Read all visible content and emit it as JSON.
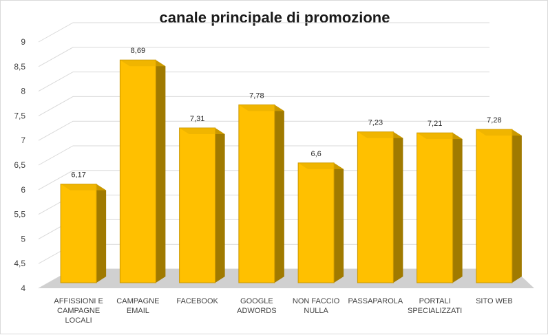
{
  "chart_data": {
    "type": "bar",
    "title": "canale principale di promozione",
    "categories": [
      [
        "AFFISSIONI E",
        "CAMPAGNE",
        "LOCALI"
      ],
      [
        "CAMPAGNE",
        "EMAIL"
      ],
      [
        "FACEBOOK"
      ],
      [
        "GOOGLE",
        "ADWORDS"
      ],
      [
        "NON FACCIO",
        "NULLA"
      ],
      [
        "PASSAPAROLA"
      ],
      [
        "PORTALI",
        "SPECIALIZZATI"
      ],
      [
        "SITO WEB"
      ]
    ],
    "values": [
      6.17,
      8.69,
      7.31,
      7.78,
      6.6,
      7.23,
      7.21,
      7.28
    ],
    "value_labels": [
      "6,17",
      "8,69",
      "7,31",
      "7,78",
      "6,6",
      "7,23",
      "7,21",
      "7,28"
    ],
    "yticks": [
      "4",
      "4,5",
      "5",
      "5,5",
      "6",
      "6,5",
      "7",
      "7,5",
      "8",
      "8,5",
      "9"
    ],
    "ylim": [
      4,
      9
    ],
    "grid": true,
    "colors": {
      "bar_front": "#ffc000",
      "bar_side": "#a07a00",
      "bar_top": "#e6ad00",
      "floor": "#d0d0d0",
      "grid": "#d9d9d9"
    }
  }
}
